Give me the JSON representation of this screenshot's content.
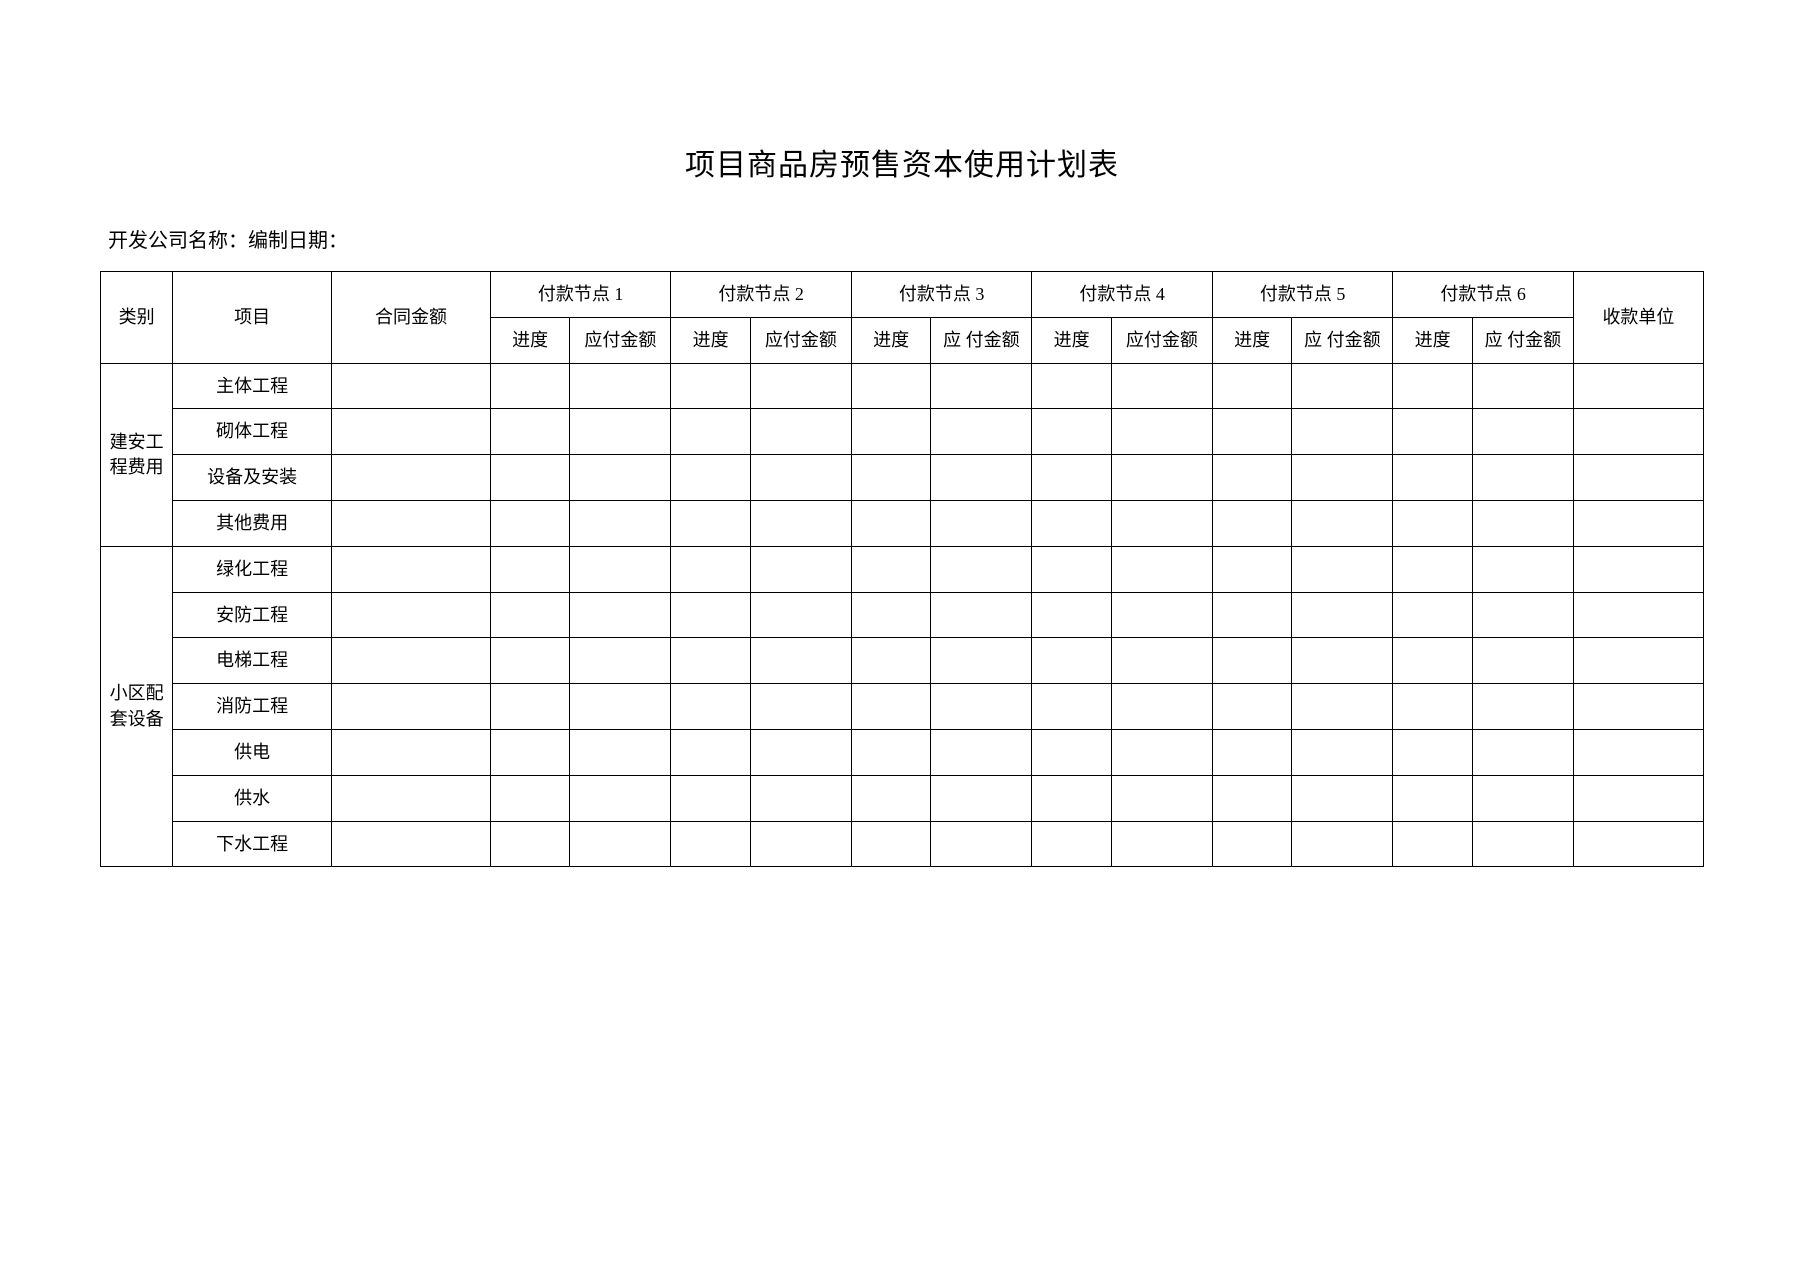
{
  "title": "项目商品房预售资本使用计划表",
  "subtitle_company": "开发公司名称：",
  "subtitle_date": "编制日期：",
  "headers": {
    "category": "类别",
    "item": "项目",
    "contract_amount": "合同金额",
    "payee": "收款单位",
    "node1": "付款节点 1",
    "node2": "付款节点 2",
    "node3": "付款节点 3",
    "node4": "付款节点 4",
    "node5": "付款节点 5",
    "node6": "付款节点 6",
    "progress": "进度",
    "payable": "应付金额",
    "payable_spaced": "应 付金额"
  },
  "categories": [
    {
      "name": "建安工程费用",
      "items": [
        "主体工程",
        "砌体工程",
        "设备及安装",
        "其他费用"
      ]
    },
    {
      "name": "小区配套设备",
      "items": [
        "绿化工程",
        "安防工程",
        "电梯工程",
        "消防工程",
        "供电",
        "供水",
        "下水工程"
      ]
    }
  ],
  "colors": {
    "background": "#ffffff",
    "text": "#000000",
    "border": "#000000"
  },
  "table_style": {
    "border_width": 1,
    "font_size_title": 30,
    "font_size_subtitle": 20,
    "font_size_cell": 18
  }
}
